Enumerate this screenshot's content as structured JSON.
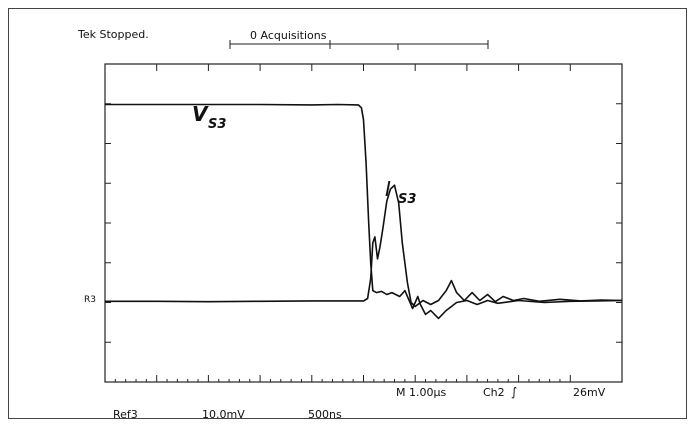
{
  "chart_data": {
    "type": "line",
    "status_text": "Tek Stopped.",
    "acquisitions_text": "0 Acquisitions",
    "ref_marker": "R3",
    "bottom_readout": {
      "timebase": "M 1.00µs",
      "channel": "Ch2",
      "trigger_symbol": "∫",
      "trigger_level": "26mV"
    },
    "ref_readout": {
      "label": "Ref3",
      "vertical": "10.0mV",
      "horizontal": "500ns"
    },
    "xlim": [
      0,
      10
    ],
    "ylim": [
      -4,
      4
    ],
    "grid": "ticks",
    "series": [
      {
        "name": "V",
        "subscript": "S3",
        "color": "#111111",
        "points": [
          [
            0,
            2.98
          ],
          [
            1,
            2.98
          ],
          [
            2,
            2.98
          ],
          [
            3,
            2.98
          ],
          [
            4,
            2.97
          ],
          [
            4.5,
            2.98
          ],
          [
            4.9,
            2.97
          ],
          [
            4.96,
            2.9
          ],
          [
            5.0,
            2.6
          ],
          [
            5.05,
            1.5
          ],
          [
            5.1,
            0.0
          ],
          [
            5.14,
            -1.0
          ],
          [
            5.18,
            -1.7
          ],
          [
            5.25,
            -1.75
          ],
          [
            5.35,
            -1.72
          ],
          [
            5.45,
            -1.8
          ],
          [
            5.55,
            -1.75
          ],
          [
            5.7,
            -1.85
          ],
          [
            5.8,
            -1.7
          ],
          [
            5.95,
            -2.15
          ],
          [
            6.05,
            -1.85
          ],
          [
            6.1,
            -2.05
          ],
          [
            6.2,
            -2.3
          ],
          [
            6.3,
            -2.2
          ],
          [
            6.45,
            -2.4
          ],
          [
            6.6,
            -2.2
          ],
          [
            6.8,
            -2.0
          ],
          [
            7.0,
            -1.95
          ],
          [
            7.2,
            -2.05
          ],
          [
            7.4,
            -1.95
          ],
          [
            7.6,
            -2.02
          ],
          [
            8.0,
            -1.95
          ],
          [
            8.5,
            -2.0
          ],
          [
            9.0,
            -1.97
          ],
          [
            9.5,
            -1.96
          ],
          [
            10,
            -1.95
          ]
        ]
      },
      {
        "name": "I",
        "subscript": "S3",
        "color": "#111111",
        "points": [
          [
            0,
            -1.97
          ],
          [
            1,
            -1.97
          ],
          [
            2,
            -1.98
          ],
          [
            3,
            -1.97
          ],
          [
            4,
            -1.96
          ],
          [
            5.0,
            -1.96
          ],
          [
            5.08,
            -1.9
          ],
          [
            5.14,
            -1.4
          ],
          [
            5.18,
            -0.5
          ],
          [
            5.22,
            -0.35
          ],
          [
            5.27,
            -0.9
          ],
          [
            5.32,
            -0.6
          ],
          [
            5.38,
            -0.1
          ],
          [
            5.45,
            0.55
          ],
          [
            5.52,
            0.85
          ],
          [
            5.6,
            0.95
          ],
          [
            5.68,
            0.5
          ],
          [
            5.75,
            -0.5
          ],
          [
            5.85,
            -1.5
          ],
          [
            5.92,
            -2.0
          ],
          [
            6.0,
            -2.1
          ],
          [
            6.15,
            -1.95
          ],
          [
            6.3,
            -2.05
          ],
          [
            6.45,
            -1.95
          ],
          [
            6.6,
            -1.7
          ],
          [
            6.7,
            -1.45
          ],
          [
            6.8,
            -1.75
          ],
          [
            6.95,
            -1.95
          ],
          [
            7.1,
            -1.75
          ],
          [
            7.25,
            -1.95
          ],
          [
            7.4,
            -1.8
          ],
          [
            7.55,
            -1.98
          ],
          [
            7.7,
            -1.85
          ],
          [
            7.9,
            -1.95
          ],
          [
            8.1,
            -1.9
          ],
          [
            8.4,
            -1.97
          ],
          [
            8.8,
            -1.92
          ],
          [
            9.2,
            -1.96
          ],
          [
            9.6,
            -1.94
          ],
          [
            10,
            -1.95
          ]
        ]
      }
    ]
  }
}
